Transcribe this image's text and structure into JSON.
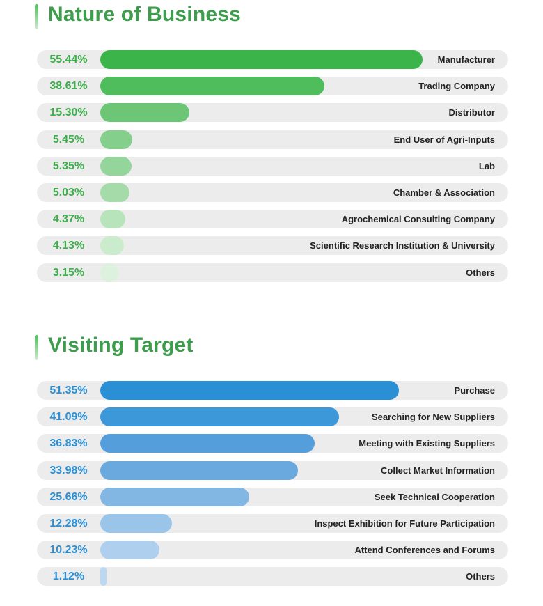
{
  "chart_data": [
    {
      "type": "bar",
      "title": "Nature of Business",
      "categories": [
        "Manufacturer",
        "Trading Company",
        "Distributor",
        "End User of Agri-Inputs",
        "Lab",
        "Chamber & Association",
        "Agrochemical Consulting Company",
        "Scientific Research Institution & University",
        "Others"
      ],
      "values": [
        55.44,
        38.61,
        15.3,
        5.45,
        5.35,
        5.03,
        4.37,
        4.13,
        3.15
      ],
      "value_labels": [
        "55.44%",
        "38.61%",
        "15.30%",
        "5.45%",
        "5.35%",
        "5.03%",
        "4.37%",
        "4.13%",
        "3.15%"
      ],
      "colors": [
        "#3bb54a",
        "#4fbd5c",
        "#6cc676",
        "#84cf8b",
        "#94d59b",
        "#a4dba9",
        "#b8e4bb",
        "#cbebcd",
        "#dcf2de"
      ],
      "ylim": [
        0,
        100
      ]
    },
    {
      "type": "bar",
      "title": "Visiting Target",
      "categories": [
        "Purchase",
        "Searching for New Suppliers",
        "Meeting with Existing Suppliers",
        "Collect Market Information",
        "Seek Technical Cooperation",
        "Inspect Exhibition for Future Participation",
        "Attend Conferences and Forums",
        "Others"
      ],
      "values": [
        51.35,
        41.09,
        36.83,
        33.98,
        25.66,
        12.28,
        10.23,
        1.12
      ],
      "value_labels": [
        "51.35%",
        "41.09%",
        "36.83%",
        "33.98%",
        "25.66%",
        "12.28%",
        "10.23%",
        "1.12%"
      ],
      "colors": [
        "#2b8fd6",
        "#3d98da",
        "#549fdb",
        "#6aa9de",
        "#82b6e3",
        "#9bc4e9",
        "#aecfee",
        "#bcd8f1"
      ],
      "ylim": [
        0,
        100
      ]
    }
  ]
}
